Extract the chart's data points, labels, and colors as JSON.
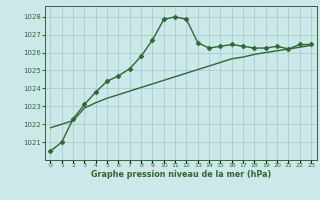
{
  "x": [
    0,
    1,
    2,
    3,
    4,
    5,
    6,
    7,
    8,
    9,
    10,
    11,
    12,
    13,
    14,
    15,
    16,
    17,
    18,
    19,
    20,
    21,
    22,
    23
  ],
  "y_main": [
    1020.5,
    1021.0,
    1022.3,
    1023.1,
    1023.8,
    1024.4,
    1024.7,
    1025.1,
    1025.8,
    1026.7,
    1027.85,
    1028.0,
    1027.85,
    1026.55,
    1026.25,
    1026.35,
    1026.45,
    1026.35,
    1026.25,
    1026.25,
    1026.35,
    1026.2,
    1026.45,
    1026.45
  ],
  "y_linear": [
    1021.8,
    1022.0,
    1022.2,
    1022.9,
    1023.2,
    1023.45,
    1023.65,
    1023.85,
    1024.05,
    1024.25,
    1024.45,
    1024.65,
    1024.85,
    1025.05,
    1025.25,
    1025.45,
    1025.65,
    1025.75,
    1025.9,
    1026.0,
    1026.1,
    1026.2,
    1026.3,
    1026.4
  ],
  "ylim_min": 1020.0,
  "ylim_max": 1028.6,
  "yticks": [
    1021,
    1022,
    1023,
    1024,
    1025,
    1026,
    1027,
    1028
  ],
  "ytick_top": 1020,
  "line_color": "#2d6a2d",
  "bg_color": "#cce8e8",
  "grid_color": "#aacfcf",
  "xlabel": "Graphe pression niveau de la mer (hPa)",
  "marker": "D",
  "marker_size": 2.5,
  "line_width": 1.0
}
